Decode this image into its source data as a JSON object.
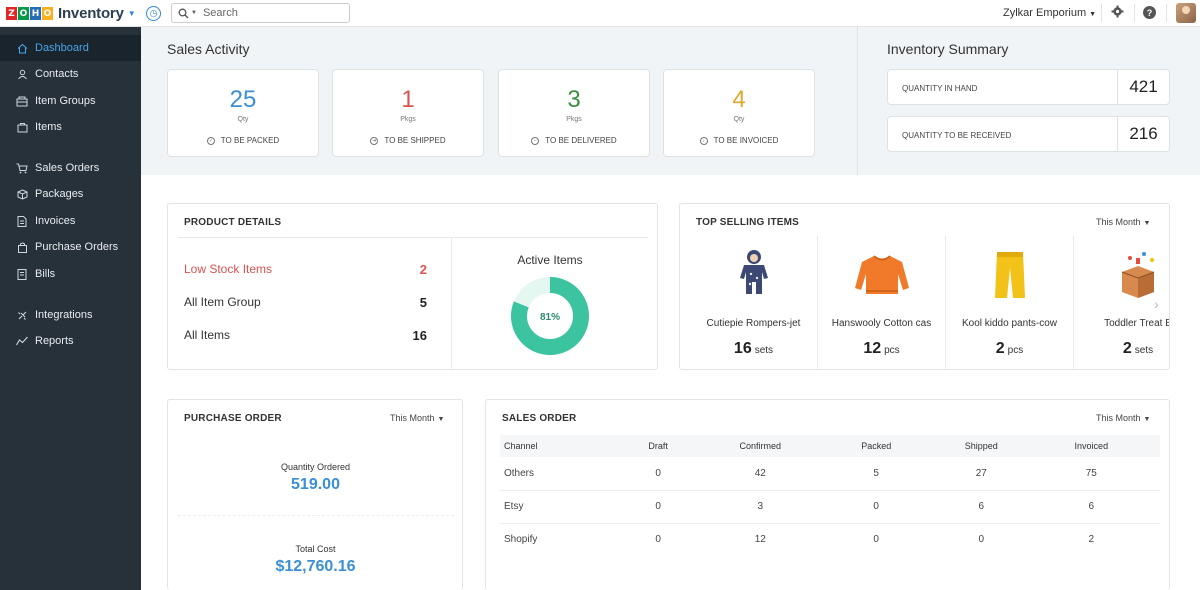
{
  "topbar": {
    "logo_letters": [
      "Z",
      "O",
      "H",
      "O"
    ],
    "logo_colors": [
      "#e42527",
      "#089949",
      "#226db4",
      "#f9b21d"
    ],
    "app_name": "Inventory",
    "search_placeholder": "Search",
    "organization": "Zylkar Emporium",
    "icons": [
      "recent-icon",
      "search-icon",
      "gear-icon",
      "help-icon",
      "avatar"
    ]
  },
  "sidebar": {
    "items": [
      {
        "label": "Dashboard",
        "icon": "home-icon",
        "active": true
      },
      {
        "label": "Contacts",
        "icon": "user-icon"
      },
      {
        "label": "Item Groups",
        "icon": "item-groups-icon"
      },
      {
        "label": "Items",
        "icon": "items-icon"
      },
      {
        "label": "Sales Orders",
        "icon": "cart-icon"
      },
      {
        "label": "Packages",
        "icon": "package-icon"
      },
      {
        "label": "Invoices",
        "icon": "invoice-icon"
      },
      {
        "label": "Purchase Orders",
        "icon": "bag-icon"
      },
      {
        "label": "Bills",
        "icon": "bill-icon"
      },
      {
        "label": "Integrations",
        "icon": "integrations-icon"
      },
      {
        "label": "Reports",
        "icon": "chart-icon"
      }
    ]
  },
  "sales_activity": {
    "title": "Sales Activity",
    "cards": [
      {
        "value": "25",
        "unit": "Qty",
        "label": "TO BE PACKED",
        "color": "#3a8fd6"
      },
      {
        "value": "1",
        "unit": "Pkgs",
        "label": "TO BE SHIPPED",
        "color": "#d9534f"
      },
      {
        "value": "3",
        "unit": "Pkgs",
        "label": "TO BE DELIVERED",
        "color": "#3c8d3f"
      },
      {
        "value": "4",
        "unit": "Qty",
        "label": "TO BE INVOICED",
        "color": "#e0a82e"
      }
    ]
  },
  "inventory_summary": {
    "title": "Inventory Summary",
    "rows": [
      {
        "label": "QUANTITY IN HAND",
        "value": "421"
      },
      {
        "label": "QUANTITY TO BE RECEIVED",
        "value": "216"
      }
    ]
  },
  "product_details": {
    "title": "PRODUCT DETAILS",
    "rows": [
      {
        "label": "Low Stock Items",
        "value": "2",
        "alert": true
      },
      {
        "label": "All Item Group",
        "value": "5"
      },
      {
        "label": "All Items",
        "value": "16"
      }
    ],
    "donut_title": "Active Items",
    "donut_label": "81%",
    "donut_fraction": 0.81,
    "donut_color": "#3cc4a0",
    "donut_rest_color": "#e4f7f1"
  },
  "top_selling": {
    "title": "TOP SELLING ITEMS",
    "range": "This Month",
    "items": [
      {
        "name": "Cutiepie Rompers-jet",
        "qty": "16",
        "unit": "sets"
      },
      {
        "name": "Hanswooly Cotton cas",
        "qty": "12",
        "unit": "pcs"
      },
      {
        "name": "Kool kiddo pants-cow",
        "qty": "2",
        "unit": "pcs"
      },
      {
        "name": "Toddler Treat B",
        "qty": "2",
        "unit": "sets"
      }
    ]
  },
  "purchase_order": {
    "title": "PURCHASE ORDER",
    "range": "This Month",
    "quantity_label": "Quantity Ordered",
    "quantity_value": "519.00",
    "cost_label": "Total Cost",
    "cost_value": "$12,760.16"
  },
  "sales_order": {
    "title": "SALES ORDER",
    "range": "This Month",
    "columns": [
      "Channel",
      "Draft",
      "Confirmed",
      "Packed",
      "Shipped",
      "Invoiced"
    ],
    "rows": [
      [
        "Others",
        "0",
        "42",
        "5",
        "27",
        "75"
      ],
      [
        "Etsy",
        "0",
        "3",
        "0",
        "6",
        "6"
      ],
      [
        "Shopify",
        "0",
        "12",
        "0",
        "0",
        "2"
      ]
    ]
  }
}
